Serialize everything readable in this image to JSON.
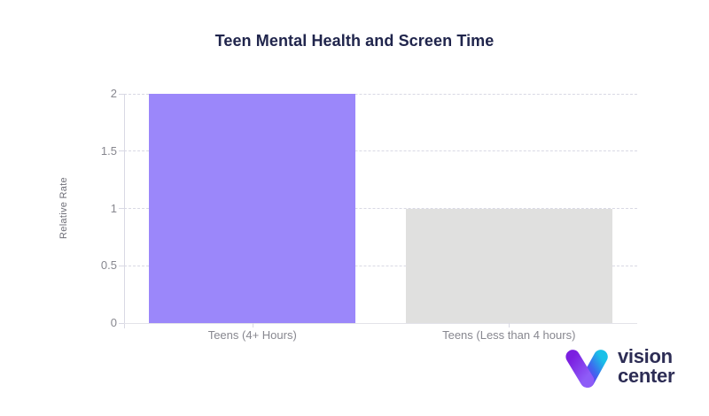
{
  "page": {
    "background": "#ffffff"
  },
  "chart_data": {
    "type": "bar",
    "title": "Teen Mental Health and Screen Time",
    "categories": [
      "Teens (4+ Hours)",
      "Teens (Less than 4 hours)"
    ],
    "values": [
      2,
      1
    ],
    "bar_colors": [
      "#9b87fa",
      "#e0e0df"
    ],
    "xlabel": "",
    "ylabel": "Relative Rate",
    "ylim": [
      0,
      2
    ],
    "yticks": [
      0,
      0.5,
      1,
      1.5,
      2
    ],
    "grid": "horizontal-dashed",
    "legend_position": "none"
  },
  "styles": {
    "title_color": "#20254c",
    "tick_label_color": "#87878f",
    "axis_line_color": "#e3e3e9",
    "grid_color": "#d9d9e4",
    "y_title_color": "#6f6f78",
    "logo_text_color": "#2d2d55"
  },
  "branding": {
    "line1": "vision",
    "line2": "center",
    "icon": "v-gradient-icon",
    "icon_gradient_left": [
      "#7b1fe0",
      "#8e5cf7"
    ],
    "icon_gradient_right": [
      "#19c0e8",
      "#6a34f2"
    ]
  }
}
